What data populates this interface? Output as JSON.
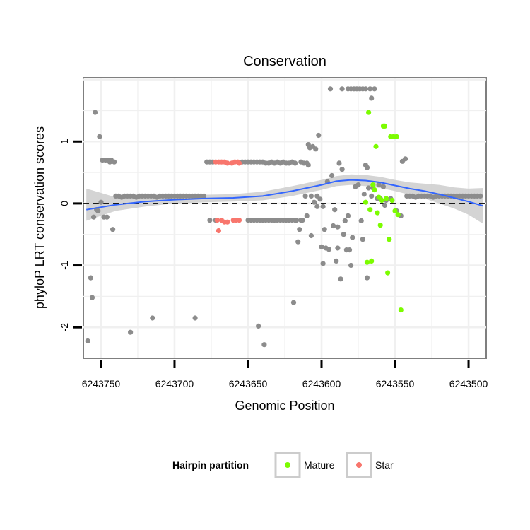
{
  "chart_data": {
    "type": "scatter",
    "title": "Conservation",
    "xlabel": "Genomic Position",
    "ylabel": "phyloP LRT conservation scores",
    "x_reversed": true,
    "xlim": [
      6243762,
      6243488
    ],
    "ylim": [
      -2.5,
      2.03
    ],
    "x_ticks": [
      6243750,
      6243700,
      6243650,
      6243600,
      6243550,
      6243500
    ],
    "x_tick_labels": [
      "6243750",
      "6243700",
      "6243650",
      "6243600",
      "6243550",
      "6243500"
    ],
    "y_ticks": [
      -2,
      -1,
      0,
      1
    ],
    "y_tick_labels": [
      "-2",
      "-1",
      "0",
      "1"
    ],
    "grid": true,
    "reference_line": {
      "y": 0,
      "style": "dashed"
    },
    "legend": {
      "title": "Hairpin partition",
      "position": "bottom",
      "entries": [
        {
          "label": "Mature",
          "color": "#7cfc00"
        },
        {
          "label": "Star",
          "color": "#f8766d"
        }
      ]
    },
    "series": [
      {
        "name": "Other",
        "color": "#8c8c8c",
        "points": [
          [
            6243759,
            -2.22
          ],
          [
            6243757,
            -1.2
          ],
          [
            6243756,
            -1.52
          ],
          [
            6243755,
            -0.22
          ],
          [
            6243754,
            1.47
          ],
          [
            6243753,
            -0.1
          ],
          [
            6243752,
            -0.12
          ],
          [
            6243751,
            1.08
          ],
          [
            6243750,
            0.02
          ],
          [
            6243749,
            0.7
          ],
          [
            6243748,
            -0.22
          ],
          [
            6243747,
            0.7
          ],
          [
            6243746,
            -0.22
          ],
          [
            6243745,
            0.7
          ],
          [
            6243744,
            0.67
          ],
          [
            6243743,
            0.7
          ],
          [
            6243742,
            -0.42
          ],
          [
            6243741,
            0.67
          ],
          [
            6243740,
            0.12
          ],
          [
            6243738,
            0.12
          ],
          [
            6243736,
            0.1
          ],
          [
            6243734,
            0.12
          ],
          [
            6243732,
            0.12
          ],
          [
            6243730,
            -2.08
          ],
          [
            6243730,
            0.12
          ],
          [
            6243728,
            0.12
          ],
          [
            6243726,
            0.1
          ],
          [
            6243724,
            0.12
          ],
          [
            6243722,
            0.12
          ],
          [
            6243720,
            0.12
          ],
          [
            6243718,
            0.12
          ],
          [
            6243716,
            0.12
          ],
          [
            6243715,
            -1.85
          ],
          [
            6243714,
            0.12
          ],
          [
            6243712,
            0.1
          ],
          [
            6243710,
            0.12
          ],
          [
            6243708,
            0.12
          ],
          [
            6243706,
            0.12
          ],
          [
            6243704,
            0.12
          ],
          [
            6243702,
            0.12
          ],
          [
            6243700,
            0.12
          ],
          [
            6243698,
            0.12
          ],
          [
            6243696,
            0.12
          ],
          [
            6243694,
            0.12
          ],
          [
            6243692,
            0.12
          ],
          [
            6243690,
            0.12
          ],
          [
            6243688,
            0.12
          ],
          [
            6243686,
            0.12
          ],
          [
            6243686,
            -1.85
          ],
          [
            6243684,
            0.12
          ],
          [
            6243682,
            0.12
          ],
          [
            6243680,
            0.12
          ],
          [
            6243678,
            0.67
          ],
          [
            6243676,
            0.67
          ],
          [
            6243676,
            -0.27
          ],
          [
            6243674,
            0.67
          ],
          [
            6243672,
            -0.27
          ],
          [
            6243654,
            0.67
          ],
          [
            6243652,
            0.67
          ],
          [
            6243650,
            0.67
          ],
          [
            6243650,
            -0.27
          ],
          [
            6243648,
            0.67
          ],
          [
            6243648,
            -0.27
          ],
          [
            6243646,
            0.67
          ],
          [
            6243646,
            -0.27
          ],
          [
            6243644,
            0.67
          ],
          [
            6243644,
            -0.27
          ],
          [
            6243643,
            -1.98
          ],
          [
            6243642,
            0.67
          ],
          [
            6243642,
            -0.27
          ],
          [
            6243640,
            0.67
          ],
          [
            6243640,
            -0.27
          ],
          [
            6243639,
            -2.28
          ],
          [
            6243638,
            0.65
          ],
          [
            6243638,
            -0.27
          ],
          [
            6243636,
            0.65
          ],
          [
            6243636,
            -0.27
          ],
          [
            6243634,
            0.67
          ],
          [
            6243634,
            -0.27
          ],
          [
            6243632,
            0.65
          ],
          [
            6243632,
            -0.27
          ],
          [
            6243630,
            0.67
          ],
          [
            6243630,
            -0.27
          ],
          [
            6243628,
            0.65
          ],
          [
            6243628,
            -0.27
          ],
          [
            6243626,
            0.67
          ],
          [
            6243626,
            -0.27
          ],
          [
            6243624,
            0.65
          ],
          [
            6243624,
            -0.27
          ],
          [
            6243622,
            0.65
          ],
          [
            6243622,
            -0.27
          ],
          [
            6243620,
            0.67
          ],
          [
            6243620,
            -0.27
          ],
          [
            6243619,
            -1.6
          ],
          [
            6243618,
            0.65
          ],
          [
            6243618,
            -0.27
          ],
          [
            6243617,
            -0.27
          ],
          [
            6243616,
            -0.62
          ],
          [
            6243615,
            -0.42
          ],
          [
            6243614,
            0.67
          ],
          [
            6243614,
            -0.27
          ],
          [
            6243613,
            -0.27
          ],
          [
            6243612,
            0.65
          ],
          [
            6243611,
            0.12
          ],
          [
            6243610,
            0.65
          ],
          [
            6243610,
            -0.2
          ],
          [
            6243609,
            0.95
          ],
          [
            6243609,
            0.62
          ],
          [
            6243608,
            0.9
          ],
          [
            6243607,
            -0.52
          ],
          [
            6243607,
            0.12
          ],
          [
            6243606,
            0.92
          ],
          [
            6243605,
            0.02
          ],
          [
            6243604,
            0.88
          ],
          [
            6243603,
            0.12
          ],
          [
            6243603,
            -0.05
          ],
          [
            6243602,
            1.1
          ],
          [
            6243601,
            0.07
          ],
          [
            6243600,
            -0.7
          ],
          [
            6243599,
            -0.97
          ],
          [
            6243599,
            -0.05
          ],
          [
            6243598,
            -0.42
          ],
          [
            6243597,
            -0.72
          ],
          [
            6243596,
            0.35
          ],
          [
            6243595,
            -0.74
          ],
          [
            6243594,
            1.85
          ],
          [
            6243593,
            0.45
          ],
          [
            6243592,
            -0.36
          ],
          [
            6243591,
            -0.1
          ],
          [
            6243590,
            -0.93
          ],
          [
            6243589,
            -0.72
          ],
          [
            6243589,
            -0.38
          ],
          [
            6243588,
            0.65
          ],
          [
            6243587,
            -1.22
          ],
          [
            6243586,
            1.85
          ],
          [
            6243586,
            0.55
          ],
          [
            6243585,
            -0.5
          ],
          [
            6243584,
            -0.28
          ],
          [
            6243583,
            -0.75
          ],
          [
            6243582,
            1.85
          ],
          [
            6243582,
            -0.2
          ],
          [
            6243581,
            -0.75
          ],
          [
            6243580,
            1.85
          ],
          [
            6243580,
            -1.0
          ],
          [
            6243579,
            -0.55
          ],
          [
            6243578,
            1.85
          ],
          [
            6243577,
            0.27
          ],
          [
            6243576,
            1.85
          ],
          [
            6243575,
            0.3
          ],
          [
            6243574,
            1.85
          ],
          [
            6243573,
            -0.28
          ],
          [
            6243572,
            1.85
          ],
          [
            6243572,
            -0.58
          ],
          [
            6243571,
            0.15
          ],
          [
            6243570,
            1.85
          ],
          [
            6243570,
            0.62
          ],
          [
            6243569,
            -1.2
          ],
          [
            6243569,
            0.58
          ],
          [
            6243568,
            0.25
          ],
          [
            6243567,
            1.85
          ],
          [
            6243566,
            0.12
          ],
          [
            6243566,
            1.7
          ],
          [
            6243565,
            0.25
          ],
          [
            6243564,
            1.85
          ],
          [
            6243562,
            0.08
          ],
          [
            6243561,
            0.3
          ],
          [
            6243560,
            0.08
          ],
          [
            6243558,
            0.27
          ],
          [
            6243557,
            -0.03
          ],
          [
            6243556,
            0.05
          ],
          [
            6243553,
            0.08
          ],
          [
            6243549,
            -0.12
          ],
          [
            6243546,
            -0.2
          ],
          [
            6243545,
            0.68
          ],
          [
            6243543,
            0.72
          ],
          [
            6243542,
            0.12
          ],
          [
            6243540,
            0.12
          ],
          [
            6243538,
            0.12
          ],
          [
            6243536,
            0.1
          ],
          [
            6243534,
            0.12
          ],
          [
            6243532,
            0.12
          ],
          [
            6243530,
            0.12
          ],
          [
            6243528,
            0.12
          ],
          [
            6243526,
            0.12
          ],
          [
            6243524,
            0.1
          ],
          [
            6243522,
            0.12
          ],
          [
            6243520,
            0.12
          ],
          [
            6243518,
            0.12
          ],
          [
            6243516,
            0.12
          ],
          [
            6243514,
            0.12
          ],
          [
            6243512,
            0.12
          ],
          [
            6243510,
            0.12
          ],
          [
            6243508,
            0.12
          ],
          [
            6243506,
            0.12
          ],
          [
            6243504,
            0.12
          ],
          [
            6243502,
            0.12
          ],
          [
            6243500,
            0.12
          ],
          [
            6243498,
            0.12
          ],
          [
            6243496,
            0.12
          ],
          [
            6243494,
            0.12
          ],
          [
            6243492,
            0.12
          ]
        ]
      },
      {
        "name": "Mature",
        "color": "#7cfc00",
        "points": [
          [
            6243570,
            0.02
          ],
          [
            6243569,
            -0.95
          ],
          [
            6243568,
            1.47
          ],
          [
            6243567,
            -0.1
          ],
          [
            6243566,
            -0.93
          ],
          [
            6243565,
            0.3
          ],
          [
            6243564,
            0.22
          ],
          [
            6243563,
            0.92
          ],
          [
            6243562,
            -0.15
          ],
          [
            6243561,
            0.1
          ],
          [
            6243560,
            -0.35
          ],
          [
            6243559,
            0.05
          ],
          [
            6243558,
            1.25
          ],
          [
            6243557,
            1.25
          ],
          [
            6243556,
            0.08
          ],
          [
            6243555,
            -1.12
          ],
          [
            6243554,
            -0.58
          ],
          [
            6243553,
            1.08
          ],
          [
            6243552,
            0.05
          ],
          [
            6243551,
            1.08
          ],
          [
            6243550,
            -0.12
          ],
          [
            6243549,
            1.08
          ],
          [
            6243548,
            -0.18
          ],
          [
            6243546,
            -1.72
          ]
        ]
      },
      {
        "name": "Star",
        "color": "#f8766d",
        "points": [
          [
            6243672,
            0.67
          ],
          [
            6243671,
            -0.27
          ],
          [
            6243670,
            0.67
          ],
          [
            6243670,
            -0.44
          ],
          [
            6243668,
            0.67
          ],
          [
            6243668,
            -0.27
          ],
          [
            6243666,
            0.67
          ],
          [
            6243666,
            -0.3
          ],
          [
            6243664,
            0.65
          ],
          [
            6243664,
            -0.3
          ],
          [
            6243661,
            0.65
          ],
          [
            6243660,
            -0.27
          ],
          [
            6243659,
            0.67
          ],
          [
            6243658,
            -0.27
          ],
          [
            6243657,
            0.67
          ],
          [
            6243656,
            0.65
          ],
          [
            6243656,
            -0.27
          ]
        ]
      }
    ],
    "smooth": {
      "color": "#3366ff",
      "band_color": "#cccccc",
      "x": [
        6243760,
        6243740,
        6243720,
        6243700,
        6243680,
        6243660,
        6243640,
        6243620,
        6243600,
        6243590,
        6243580,
        6243570,
        6243560,
        6243550,
        6243540,
        6243530,
        6243520,
        6243510,
        6243500,
        6243490
      ],
      "y": [
        -0.1,
        -0.02,
        0.03,
        0.06,
        0.08,
        0.09,
        0.12,
        0.2,
        0.3,
        0.36,
        0.38,
        0.37,
        0.34,
        0.29,
        0.24,
        0.2,
        0.15,
        0.09,
        0.03,
        -0.04
      ],
      "lower": [
        -0.28,
        -0.12,
        -0.05,
        0.0,
        0.02,
        0.03,
        0.05,
        0.12,
        0.22,
        0.28,
        0.3,
        0.28,
        0.25,
        0.2,
        0.14,
        0.08,
        0.0,
        -0.08,
        -0.18,
        -0.33
      ],
      "upper": [
        0.24,
        0.1,
        0.12,
        0.13,
        0.14,
        0.15,
        0.19,
        0.28,
        0.38,
        0.44,
        0.47,
        0.46,
        0.43,
        0.38,
        0.34,
        0.32,
        0.3,
        0.26,
        0.24,
        0.25
      ]
    }
  }
}
